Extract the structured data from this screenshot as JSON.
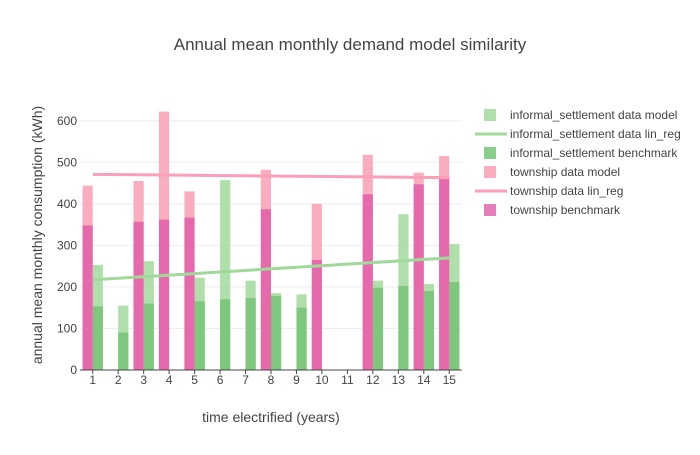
{
  "colors": {
    "informal_model": "#a1d99b",
    "informal_benchmark": "#74c476",
    "township_model": "#fa9fb5",
    "township_benchmark": "#dd53a4",
    "informal_reg": "#a1d99b",
    "township_reg": "#fa9fb5"
  },
  "chart_data": {
    "type": "bar",
    "title": "Annual mean monthly demand model similarity",
    "xlabel": "time electrified (years)",
    "ylabel": "annual mean monthly consumption (kWh)",
    "ylim": [
      0,
      650
    ],
    "yticks": [
      0,
      100,
      200,
      300,
      400,
      500,
      600
    ],
    "xlim": [
      0.5,
      15.5
    ],
    "categories": [
      "1",
      "2",
      "3",
      "4",
      "5",
      "6",
      "7",
      "8",
      "9",
      "10",
      "11",
      "12",
      "13",
      "14",
      "15"
    ],
    "legend_position": "right",
    "grid": true,
    "series": [
      {
        "name": "informal_settlement data model",
        "kind": "bar",
        "group": "informal",
        "color_key": "informal_model",
        "offset": 0.2,
        "values": [
          253,
          155,
          262,
          null,
          222,
          457,
          215,
          185,
          182,
          null,
          null,
          215,
          375,
          207,
          303
        ]
      },
      {
        "name": "informal_settlement benchmark",
        "kind": "bar",
        "group": "informal",
        "color_key": "informal_benchmark",
        "offset": 0.2,
        "values": [
          153,
          90,
          160,
          null,
          165,
          170,
          173,
          178,
          150,
          null,
          null,
          198,
          202,
          190,
          212
        ]
      },
      {
        "name": "township data model",
        "kind": "bar",
        "group": "township",
        "color_key": "township_model",
        "offset": -0.2,
        "values": [
          444,
          null,
          455,
          622,
          430,
          null,
          null,
          482,
          null,
          400,
          null,
          518,
          null,
          475,
          515
        ]
      },
      {
        "name": "township benchmark",
        "kind": "bar",
        "group": "township",
        "color_key": "township_benchmark",
        "offset": -0.2,
        "values": [
          348,
          null,
          357,
          362,
          367,
          null,
          null,
          387,
          null,
          265,
          null,
          423,
          null,
          447,
          460
        ]
      },
      {
        "name": "informal_settlement data lin_reg",
        "kind": "line",
        "color_key": "informal_reg",
        "x": [
          1,
          15
        ],
        "y": [
          217,
          270
        ]
      },
      {
        "name": "township data lin_reg",
        "kind": "line",
        "color_key": "township_reg",
        "x": [
          1,
          15
        ],
        "y": [
          471,
          463
        ]
      }
    ],
    "legend_order": [
      "informal_settlement data model",
      "informal_settlement data lin_reg",
      "informal_settlement benchmark",
      "township data model",
      "township data lin_reg",
      "township benchmark"
    ]
  }
}
